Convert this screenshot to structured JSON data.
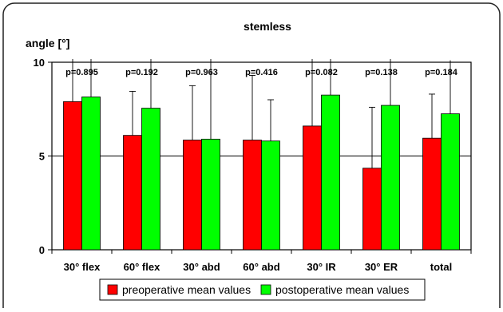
{
  "chart_data": {
    "type": "bar",
    "title": "stemless",
    "ylabel": "angle [°]",
    "xlabel": "",
    "ylim": [
      0,
      10
    ],
    "yticks": [
      0,
      5,
      10
    ],
    "grid": "horizontal line at 5",
    "legend_position": "bottom",
    "categories": [
      "30° flex",
      "60° flex",
      "30° abd",
      "60° abd",
      "30° IR",
      "30° ER",
      "total"
    ],
    "p_values": [
      "p=0.895",
      "p=0.192",
      "p=0.963",
      "p=0.416",
      "p=0.082",
      "p=0.138",
      "p=0.184"
    ],
    "series": [
      {
        "name": "preoperative mean values",
        "color": "#ff0000",
        "values": [
          7.9,
          6.1,
          5.85,
          5.85,
          6.6,
          4.35,
          5.95
        ],
        "error_upper": [
          10.3,
          8.45,
          8.75,
          9.3,
          10.4,
          7.6,
          8.3
        ]
      },
      {
        "name": "postoperative mean values",
        "color": "#00ff00",
        "values": [
          8.15,
          7.55,
          5.9,
          5.8,
          8.25,
          7.7,
          7.25
        ],
        "error_upper": [
          10.3,
          10.3,
          10.3,
          8.0,
          10.3,
          10.3,
          10.1
        ]
      }
    ]
  }
}
